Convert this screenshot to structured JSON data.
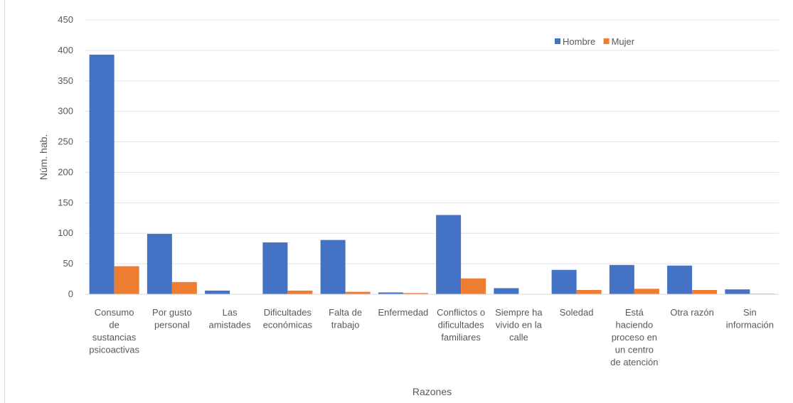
{
  "chart_data": {
    "type": "bar",
    "xlabel": "Razones",
    "ylabel": "Núm. hab.",
    "ylim": [
      0,
      450
    ],
    "yticks": [
      0,
      50,
      100,
      150,
      200,
      250,
      300,
      350,
      400,
      450
    ],
    "grid": true,
    "legend_position": "top-right",
    "categories": [
      [
        "Consumo",
        "de",
        "sustancias",
        "psicoactivas"
      ],
      [
        "Por gusto",
        "personal"
      ],
      [
        "Las",
        "amistades"
      ],
      [
        "Dificultades",
        "económicas"
      ],
      [
        "Falta de",
        "trabajo"
      ],
      [
        "Enfermedad"
      ],
      [
        "Conflictos o",
        "dificultades",
        "familiares"
      ],
      [
        "Siempre ha",
        "vivido en la",
        "calle"
      ],
      [
        "Soledad"
      ],
      [
        "Está",
        "haciendo",
        "proceso en",
        "un centro",
        "de atención"
      ],
      [
        "Otra razón"
      ],
      [
        "Sin",
        "información"
      ]
    ],
    "series": [
      {
        "name": "Hombre",
        "color": "#4472C4",
        "values": [
          393,
          99,
          6,
          85,
          89,
          3,
          130,
          10,
          40,
          48,
          47,
          8
        ]
      },
      {
        "name": "Mujer",
        "color": "#ED7D31",
        "values": [
          46,
          20,
          0,
          6,
          4,
          2,
          26,
          0,
          7,
          9,
          7,
          1
        ]
      }
    ]
  }
}
